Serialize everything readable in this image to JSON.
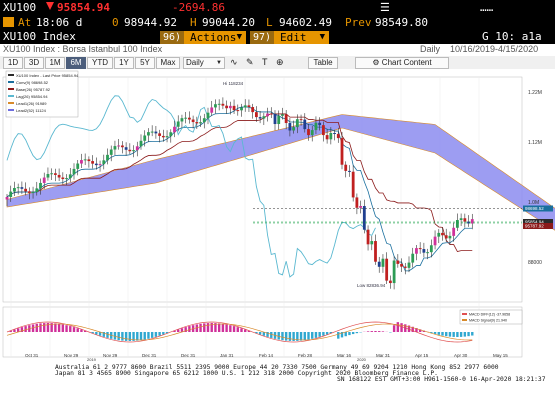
{
  "quote": {
    "ticker": "XU100",
    "last": "95854.94",
    "change": "-2694.86",
    "time_label": "At",
    "time": "18:06 d",
    "open_label": "0",
    "open": "98944.92",
    "high_label": "H",
    "high": "99044.20",
    "low_label": "L",
    "low": "94602.49",
    "prev_label": "Prev",
    "prev": "98549.80"
  },
  "title": {
    "name": "XU100 Index",
    "menu_num_actions": "96)",
    "actions_label": "Actions",
    "menu_num_edit": "97)",
    "edit_label": "Edit",
    "page_label": "G 10: a1a"
  },
  "subtitle": {
    "security": "XU100 Index : Borsa Istanbul 100 Index",
    "period": "Daily",
    "range": "10/16/2019-4/15/2020"
  },
  "toolbar": {
    "ranges": [
      "1D",
      "3D",
      "1M",
      "6M",
      "YTD",
      "1Y",
      "5Y",
      "Max"
    ],
    "active_range": "6M",
    "frequency": "Daily",
    "table_label": "Table",
    "chart_content_label": "Chart Content"
  },
  "legend": [
    {
      "label": "XU100 Index - Last Price 95854.94",
      "color": "#2a2a2a"
    },
    {
      "label": "Conv(9) 98698.52",
      "color": "#1a6f9e"
    },
    {
      "label": "Base(26) 95787.92",
      "color": "#8b1a1a"
    },
    {
      "label": "Lag(26) 95854.94",
      "color": "#5ab8d0"
    },
    {
      "label": "Lead1(26) 91989",
      "color": "#d88a2a"
    },
    {
      "label": "Lead2(52) 11124",
      "color": "#6e6ee0"
    }
  ],
  "chart_data": {
    "type": "candlestick",
    "annotations": [
      "Hi 118234",
      "Low 82836.94"
    ],
    "y_tick_labels": [
      "1.22M",
      "1.12M",
      "1.0M",
      "96000",
      "88000"
    ],
    "x_tick_labels": [
      "Oct 31",
      "Nov 29",
      "Nov 29",
      "Dec 31",
      "Dec 31",
      "Jan 31",
      "Feb 14",
      "Feb 28",
      "Mar 16",
      "Mar 31",
      "Apr 15",
      "Apr 30",
      "May 15"
    ],
    "x_year_labels": [
      "2019",
      "2020"
    ],
    "price_tags": [
      {
        "label": "95854.94",
        "color": "#2a2a2a"
      },
      {
        "label": "95787.92",
        "color": "#8b1a1a"
      },
      {
        "label": "98698.52",
        "color": "#1a6f9e"
      }
    ],
    "macd_legend": [
      "MACD DIFF(12) -37.9658",
      "MACD Signal(9) 21.940"
    ]
  },
  "footer": {
    "line1": "Australia 61 2 9777 8600 Brazil 5511 2395 9000 Europe 44 20 7330 7500 Germany 49 69 9204 1210 Hong Kong 852 2977 6000",
    "line2": "Japan 81 3 4565 8900        Singapore 65 6212 1000      U.S. 1 212 318 2000       Copyright 2020 Bloomberg Finance L.P.",
    "line3": "SN 168122 EST  GMT+3:00 H961-1560-0 16-Apr-2020 18:21:37"
  },
  "colors": {
    "amber": "#e69500",
    "negative": "#ff3030",
    "cloud": "#8c8cf0",
    "positive": "#1fa24a",
    "macd_pos": "#d0309a",
    "macd_neg": "#30a8d0"
  }
}
